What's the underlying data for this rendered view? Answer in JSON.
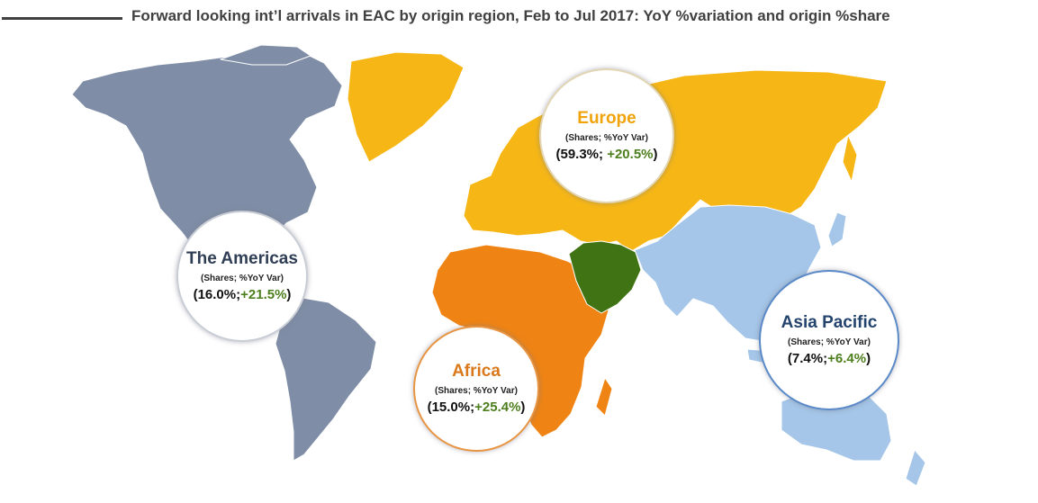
{
  "title": "Forward looking int’l arrivals in EAC by origin region, Feb to Jul 2017: YoY %variation and origin %share",
  "colors": {
    "americas": "#7f8ea6",
    "europe": "#f6b716",
    "africa": "#ef8414",
    "middle_east": "#3f7313",
    "asia_pacific": "#a5c6e8",
    "yoy_text": "#4e7f1e"
  },
  "regions": {
    "americas": {
      "name": "The Americas",
      "name_color": "#2f3e55",
      "subtitle": "(Shares; %YoY Var)",
      "open": "(",
      "share": "16.0%",
      "sep": ";",
      "yoy": "+21.5%",
      "close": ")",
      "border": "#c9ced6"
    },
    "europe": {
      "name": "Europe",
      "name_color": "#f0a30a",
      "subtitle": "(Shares; %YoY Var)",
      "open": "(",
      "share": "59.3%",
      "sep": "; ",
      "yoy": "+20.5%",
      "close": ")",
      "border": "#e3d6b4"
    },
    "africa": {
      "name": "Africa",
      "name_color": "#d9791c",
      "subtitle": "(Shares; %YoY Var)",
      "open": "(",
      "share": "15.0%",
      "sep": ";",
      "yoy": "+25.4%",
      "close": ")",
      "border": "#e89544"
    },
    "asia_pacific": {
      "name": "Asia Pacific",
      "name_color": "#24446e",
      "subtitle": "(Shares; %YoY Var)",
      "open": "(",
      "share": "7.4%",
      "sep": ";",
      "yoy": "+6.4%",
      "close": ")",
      "border": "#5a8ac8"
    }
  }
}
